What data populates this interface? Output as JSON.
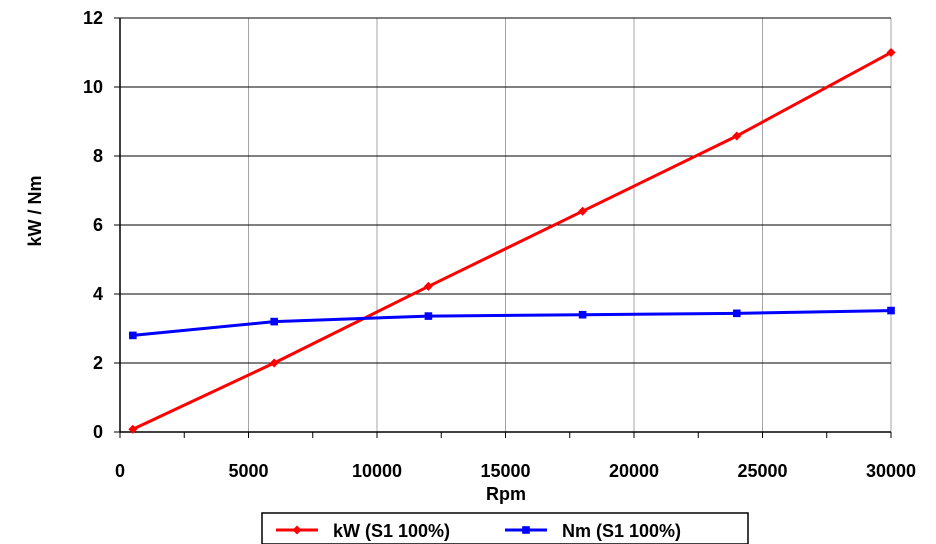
{
  "chart_data": {
    "type": "line",
    "title": "",
    "xlabel": "Rpm",
    "ylabel": "kW / Nm",
    "xlim": [
      0,
      30000
    ],
    "ylim": [
      0,
      12
    ],
    "xticks": [
      0,
      5000,
      10000,
      15000,
      20000,
      25000,
      30000
    ],
    "yticks": [
      0,
      2,
      4,
      6,
      8,
      10,
      12
    ],
    "grid": true,
    "legend_position": "bottom",
    "series": [
      {
        "name": "kW (S1 100%)",
        "color": "#ff0000",
        "marker": "diamond",
        "x": [
          500,
          6000,
          12000,
          18000,
          24000,
          30000
        ],
        "y": [
          0.08,
          2.0,
          4.22,
          6.4,
          8.58,
          11.0
        ]
      },
      {
        "name": "Nm (S1 100%)",
        "color": "#0000ff",
        "marker": "square",
        "x": [
          500,
          6000,
          12000,
          18000,
          24000,
          30000
        ],
        "y": [
          2.8,
          3.2,
          3.36,
          3.4,
          3.44,
          3.52
        ]
      }
    ]
  }
}
